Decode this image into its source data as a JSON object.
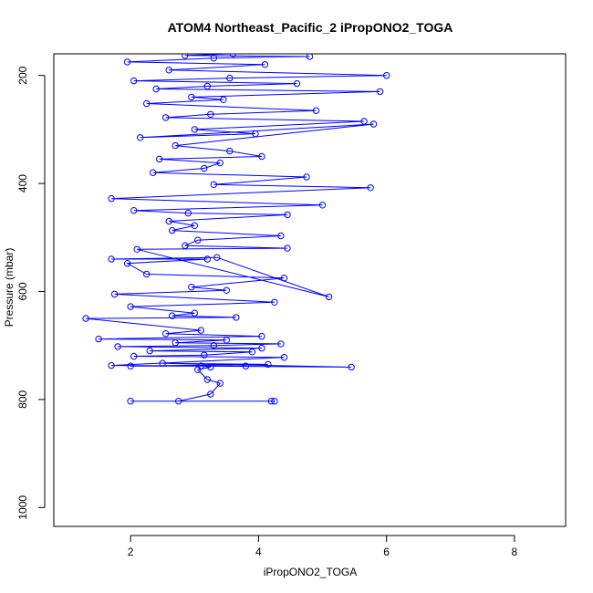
{
  "chart_data": {
    "type": "line",
    "title": "ATOM4 Northeast_Pacific_2 iPropONO2_TOGA",
    "xlabel": "iPropONO2_TOGA",
    "ylabel": "Pressure (mbar)",
    "xlim": [
      0.8,
      8.8
    ],
    "ylim": [
      1035,
      160
    ],
    "x_ticks": [
      2,
      4,
      6,
      8
    ],
    "y_ticks": [
      200,
      400,
      600,
      800,
      1000
    ],
    "color": "#0000ff",
    "grid": false,
    "legend": "none",
    "series": [
      {
        "x": [
          4.25,
          4.2,
          2.0,
          2.75,
          3.25,
          3.4,
          3.2,
          3.05,
          3.25,
          3.1,
          3.8,
          2.0,
          4.15,
          2.5,
          5.45,
          1.7,
          4.4,
          2.05,
          3.15,
          3.9,
          2.3,
          4.05,
          1.8,
          3.3,
          4.35,
          2.7,
          3.5,
          1.5,
          4.05,
          2.55,
          3.1,
          1.3,
          3.65,
          2.65,
          3.0,
          2.0,
          4.25,
          1.75,
          3.5,
          2.95,
          4.4,
          2.25,
          1.95,
          3.2,
          1.7,
          3.35,
          5.1,
          2.1,
          4.45,
          2.85,
          3.05,
          4.35,
          2.65,
          3.0,
          2.6,
          4.45,
          2.9,
          2.05,
          5.0,
          1.7,
          5.75,
          3.3,
          4.75,
          2.35,
          3.15,
          3.4,
          2.45,
          4.05,
          3.55,
          2.7,
          5.8,
          2.15,
          3.95,
          3.0,
          5.65,
          2.55,
          3.25,
          4.9,
          2.25,
          3.45,
          2.95,
          5.9,
          2.4,
          3.2,
          4.6,
          2.05,
          3.55,
          6.0,
          2.6,
          4.1,
          1.95,
          3.3,
          4.8,
          2.85,
          3.6
        ],
        "y": [
          803,
          803,
          803,
          803,
          790,
          770,
          763,
          745,
          740,
          738,
          738,
          738,
          735,
          733,
          740,
          737,
          722,
          720,
          718,
          712,
          710,
          705,
          702,
          700,
          697,
          695,
          690,
          688,
          683,
          678,
          672,
          650,
          648,
          645,
          640,
          628,
          620,
          605,
          598,
          592,
          575,
          568,
          548,
          540,
          540,
          537,
          610,
          522,
          520,
          515,
          505,
          497,
          487,
          478,
          470,
          458,
          455,
          450,
          440,
          428,
          408,
          402,
          388,
          380,
          372,
          362,
          355,
          350,
          340,
          330,
          290,
          315,
          308,
          300,
          285,
          278,
          272,
          265,
          252,
          245,
          240,
          230,
          225,
          220,
          215,
          210,
          205,
          200,
          190,
          180,
          175,
          168,
          165,
          163,
          160
        ]
      }
    ]
  }
}
